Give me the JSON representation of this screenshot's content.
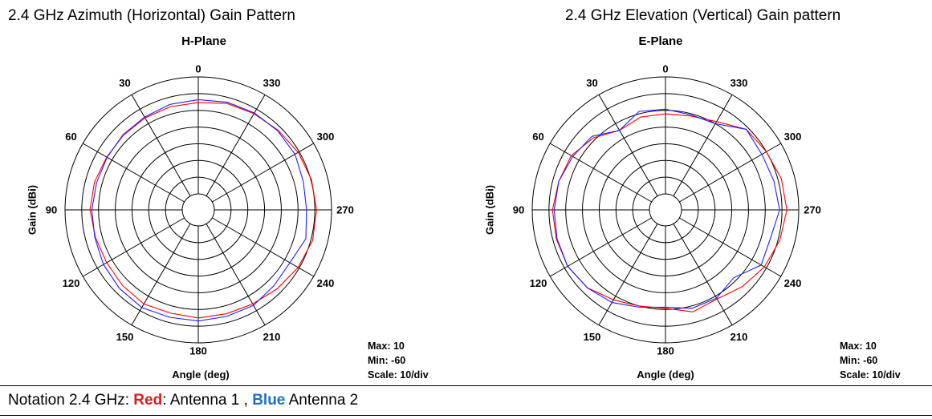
{
  "colors": {
    "series_1": "#ff0000",
    "series_2": "#1f1fff",
    "grid": "#000000",
    "notation_red": "#d81e1e",
    "notation_blue": "#1f6fbf"
  },
  "chart_data": [
    {
      "type": "polar-line",
      "panel_title": "2.4 GHz Azimuth  (Horizontal) Gain Pattern",
      "title": "H-Plane",
      "xlabel": "Angle  (deg)",
      "ylabel": "Gain  (dBi)",
      "r_range": [
        -60,
        10
      ],
      "r_divisions": 7,
      "angle_direction": "counterclockwise",
      "zero_position": "top",
      "angle_ticks": [
        "0",
        "30",
        "60",
        "90",
        "120",
        "150",
        "180",
        "210",
        "240",
        "270",
        "300",
        "330"
      ],
      "stats": {
        "max": "Max: 10",
        "min": "Min: -60",
        "scale": "Scale: 10/div"
      },
      "angles": [
        0,
        15,
        30,
        45,
        60,
        75,
        90,
        105,
        120,
        135,
        150,
        165,
        180,
        195,
        210,
        225,
        240,
        255,
        270,
        285,
        300,
        315,
        330,
        345
      ],
      "series": [
        {
          "values": [
            -5.4,
            -5.6,
            -6.0,
            -6.4,
            -6.4,
            -5.4,
            -4.9,
            -6.0,
            -6.4,
            -5.6,
            -4.6,
            -5.6,
            -4.9,
            -5.2,
            -4.6,
            -2.9,
            -0.7,
            1.1,
            1.1,
            0.4,
            -0.7,
            -2.1,
            -3.1,
            -3.6
          ]
        },
        {
          "values": [
            -3.6,
            -4.2,
            -5.4,
            -6.0,
            -6.7,
            -6.7,
            -6.0,
            -5.6,
            -4.2,
            -3.1,
            -2.1,
            -3.1,
            -3.1,
            -3.6,
            -3.6,
            -5.6,
            -6.4,
            -3.1,
            -4.9,
            -4.6,
            -2.9,
            -2.6,
            -2.6,
            -2.9
          ]
        }
      ]
    },
    {
      "type": "polar-line",
      "panel_title": "2.4 GHz Elevation (Vertical) Gain pattern",
      "title": "E-Plane",
      "xlabel": "Angle  (deg)",
      "ylabel": "Gain  (dBi)",
      "r_range": [
        -60,
        10
      ],
      "r_divisions": 7,
      "angle_direction": "counterclockwise",
      "zero_position": "top",
      "angle_ticks": [
        "0",
        "30",
        "60",
        "90",
        "120",
        "150",
        "180",
        "210",
        "240",
        "270",
        "300",
        "330"
      ],
      "stats": {
        "max": "Max: 10",
        "min": "Min: -60",
        "scale": "Scale: 10/div"
      },
      "angles": [
        0,
        15,
        30,
        45,
        60,
        75,
        90,
        105,
        120,
        135,
        150,
        165,
        180,
        195,
        210,
        225,
        240,
        255,
        270,
        285,
        300,
        315,
        330,
        345
      ],
      "series": [
        {
          "values": [
            -12.1,
            -12.1,
            -14.6,
            -8.6,
            -4.6,
            -3.6,
            -2.1,
            -2.1,
            -2.1,
            -3.6,
            -7.4,
            -10.0,
            -10.7,
            -6.4,
            -8.0,
            -4.6,
            -1.4,
            1.1,
            2.9,
            2.1,
            0.0,
            -1.4,
            -8.6,
            -11.4
          ]
        },
        {
          "values": [
            -9.3,
            -8.6,
            -14.6,
            -7.4,
            -5.6,
            -3.6,
            -3.1,
            -2.6,
            -2.1,
            -3.6,
            -5.6,
            -9.3,
            -11.4,
            -8.6,
            -8.6,
            -12.1,
            -3.6,
            -4.6,
            -1.4,
            -2.6,
            -3.1,
            -1.4,
            -10.0,
            -10.7
          ]
        }
      ]
    }
  ],
  "notation": {
    "prefix": "Notation 2.4 GHz: ",
    "red_word": "Red",
    "middle": ": Antenna 1 , ",
    "blue_word": "Blue",
    "suffix": " Antenna 2"
  }
}
